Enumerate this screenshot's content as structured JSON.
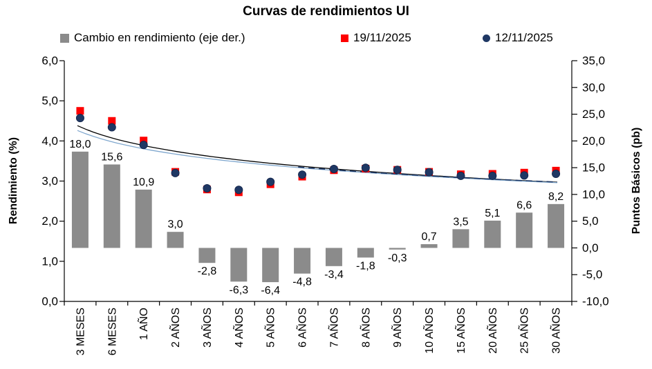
{
  "title": "Curvas de rendimientos UI",
  "legend": [
    {
      "label": "Cambio en rendimiento (eje der.)",
      "marker": "square",
      "color": "#8B8B8B"
    },
    {
      "label": "19/11/2025",
      "marker": "square",
      "color": "#FE0000"
    },
    {
      "label": "12/11/2025",
      "marker": "circle",
      "color": "#1F3864"
    }
  ],
  "left_axis": {
    "title": "Rendimiento (%)",
    "min": 0,
    "max": 6,
    "tick_values": [
      6,
      5,
      4,
      3,
      2,
      1,
      0
    ],
    "tick_labels": [
      "6,0",
      "5,0",
      "4,0",
      "3,0",
      "2,0",
      "1,0",
      "0,0"
    ]
  },
  "right_axis": {
    "title": "Puntos Básicos (pb)",
    "min": -10,
    "max": 35,
    "tick_values": [
      35,
      30,
      25,
      20,
      15,
      10,
      5,
      0,
      -5,
      -10
    ],
    "tick_labels": [
      "35,0",
      "30,0",
      "25,0",
      "20,0",
      "15,0",
      "10,0",
      "5,0",
      "0,0",
      "-5,0",
      "-10,0"
    ]
  },
  "chart_data": {
    "type": "combo",
    "categories": [
      "3 MESES",
      "6 MESES",
      "1 AÑO",
      "2 AÑOS",
      "3 AÑOS",
      "4 AÑOS",
      "5 AÑOS",
      "6 AÑOS",
      "7 AÑOS",
      "8 AÑOS",
      "9 AÑOS",
      "10 AÑOS",
      "15 AÑOS",
      "20 AÑOS",
      "25 AÑOS",
      "30 AÑOS"
    ],
    "series": [
      {
        "name": "Cambio en rendimiento (eje der.)",
        "type": "bar",
        "axis": "right",
        "color": "#8B8B8B",
        "values": [
          18.0,
          15.6,
          10.9,
          3.0,
          -2.8,
          -6.3,
          -6.4,
          -4.8,
          -3.4,
          -1.8,
          -0.3,
          0.7,
          3.5,
          5.1,
          6.6,
          8.2
        ],
        "labels": [
          "18,0",
          "15,6",
          "10,9",
          "3,0",
          "-2,8",
          "-6,3",
          "-6,4",
          "-4,8",
          "-3,4",
          "-1,8",
          "-0,3",
          "0,7",
          "3,5",
          "5,1",
          "6,6",
          "8,2"
        ]
      },
      {
        "name": "19/11/2025",
        "type": "scatter",
        "axis": "left",
        "marker": "square",
        "color": "#FE0000",
        "values": [
          4.75,
          4.5,
          4.01,
          3.23,
          2.79,
          2.72,
          2.92,
          3.11,
          3.27,
          3.31,
          3.28,
          3.23,
          3.17,
          3.18,
          3.21,
          3.26
        ]
      },
      {
        "name": "12/11/2025",
        "type": "scatter",
        "axis": "left",
        "marker": "circle",
        "color": "#1F3864",
        "values": [
          4.57,
          4.34,
          3.9,
          3.2,
          2.82,
          2.78,
          2.98,
          3.16,
          3.3,
          3.33,
          3.28,
          3.22,
          3.13,
          3.13,
          3.14,
          3.18
        ]
      }
    ],
    "trendlines": [
      {
        "name": "trend-19-11-2025",
        "shape": "logarithmic",
        "color": "#000000",
        "dash": "",
        "width": 1.3,
        "start_value": 4.38,
        "end_value": 2.97,
        "t_start": 0
      },
      {
        "name": "trend-12-11-2025",
        "shape": "logarithmic",
        "color": "#7FA7CE",
        "dash": "",
        "width": 1.3,
        "start_value": 4.26,
        "end_value": 2.96,
        "t_start": 0
      },
      {
        "name": "trend-12-11-2025-dashed",
        "shape": "logarithmic",
        "color": "#1F3864",
        "dash": "9 6",
        "width": 1.6,
        "start_value": 4.27,
        "end_value": 2.975,
        "t_start": 0.46
      }
    ],
    "layout": {
      "grid": false,
      "legend_position": "top",
      "background": "#FFFFFF"
    }
  }
}
